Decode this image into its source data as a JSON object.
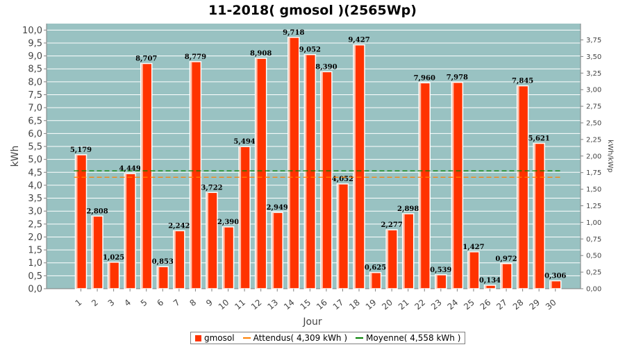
{
  "chart_data": {
    "type": "bar",
    "title": "11-2018( gmosol )(2565Wp)",
    "xlabel": "Jour",
    "ylabel": "kWh",
    "y2label": "kWh/kWp",
    "ylim": [
      0,
      10.25
    ],
    "y2lim": [
      0,
      3.996
    ],
    "categories": [
      "1",
      "2",
      "3",
      "4",
      "5",
      "6",
      "7",
      "8",
      "9",
      "10",
      "11",
      "12",
      "13",
      "14",
      "15",
      "16",
      "17",
      "18",
      "19",
      "20",
      "21",
      "22",
      "23",
      "24",
      "25",
      "26",
      "27",
      "28",
      "29",
      "30"
    ],
    "series": [
      {
        "name": "gmosol",
        "values": [
          5.179,
          2.808,
          1.025,
          4.449,
          8.707,
          0.853,
          2.242,
          8.779,
          3.722,
          2.39,
          5.494,
          8.908,
          2.949,
          9.718,
          9.052,
          8.39,
          4.052,
          9.427,
          0.625,
          2.277,
          2.898,
          7.96,
          0.539,
          7.978,
          1.427,
          0.134,
          0.972,
          7.845,
          5.621,
          0.306
        ],
        "labels": [
          "5,179",
          "2,808",
          "1,025",
          "4,449",
          "8,707",
          "0,853",
          "2,242",
          "8,779",
          "3,722",
          "2,390",
          "5,494",
          "8,908",
          "2,949",
          "9,718",
          "9,052",
          "8,390",
          "4,052",
          "9,427",
          "0,625",
          "2,277",
          "2,898",
          "7,960",
          "0,539",
          "7,978",
          "1,427",
          "0,134",
          "0,972",
          "7,845",
          "5,621",
          "0,306"
        ],
        "color": "#ff3300"
      }
    ],
    "reference_lines": [
      {
        "name": "Attendus",
        "legend": "Attendus( 4,309 kWh )",
        "value": 4.309,
        "color": "#ff8000"
      },
      {
        "name": "Moyenne",
        "legend": "Moyenne( 4,558 kWh )",
        "value": 4.558,
        "color": "#008000"
      }
    ],
    "y_ticks": [
      "0,0",
      "0,5",
      "1,0",
      "1,5",
      "2,0",
      "2,5",
      "3,0",
      "3,5",
      "4,0",
      "4,5",
      "5,0",
      "5,5",
      "6,0",
      "6,5",
      "7,0",
      "7,5",
      "8,0",
      "8,5",
      "9,0",
      "9,5",
      "10,0"
    ],
    "y2_ticks": [
      "0,00",
      "0,25",
      "0,50",
      "0,75",
      "1,00",
      "1,25",
      "1,50",
      "1,75",
      "2,00",
      "2,25",
      "2,50",
      "2,75",
      "3,00",
      "3,25",
      "3,50",
      "3,75"
    ],
    "grid": true,
    "legend_position": "bottom",
    "colors": {
      "plot_background": "#99c2c2",
      "grid": "#ffffff",
      "bar": "#ff3300"
    }
  }
}
